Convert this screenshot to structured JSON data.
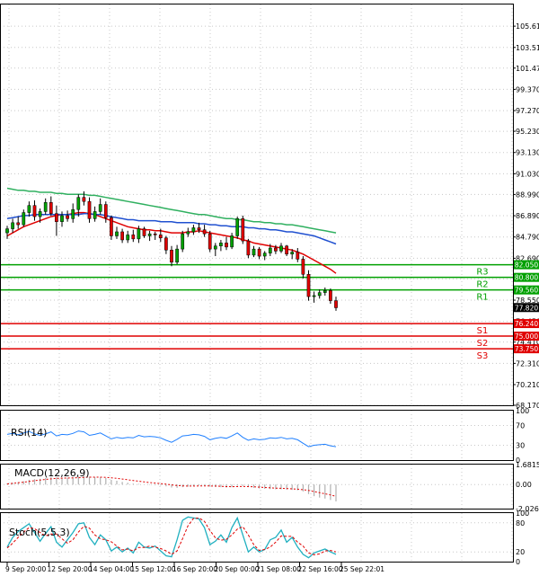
{
  "chart_data": {
    "type": "candlestick",
    "price_axis": {
      "ylim": [
        68.17,
        107.75
      ],
      "ticks": [
        "105.610",
        "103.510",
        "101.470",
        "99.370",
        "97.270",
        "95.230",
        "93.130",
        "91.030",
        "88.990",
        "86.890",
        "84.790",
        "82.690",
        "80.650",
        "78.550",
        "76.450",
        "74.410",
        "72.310",
        "70.210",
        "68.170"
      ]
    },
    "x_ticks": [
      "9 Sep 20:00",
      "12 Sep 20:00",
      "14 Sep 04:00",
      "15 Sep 12:00",
      "16 Sep 20:00",
      "20 Sep 00:00",
      "21 Sep 08:00",
      "22 Sep 16:00",
      "25 Sep 22:01"
    ],
    "current_price": {
      "label": "77.820",
      "value": 77.82
    },
    "levels": [
      {
        "name": "R3",
        "label": "82.050",
        "value": 82.05,
        "color": "#00a000"
      },
      {
        "name": "R2",
        "label": "80.800",
        "value": 80.8,
        "color": "#00a000"
      },
      {
        "name": "R1",
        "label": "79.560",
        "value": 79.56,
        "color": "#00a000"
      },
      {
        "name": "S1",
        "label": "76.240",
        "value": 76.24,
        "color": "#e00000"
      },
      {
        "name": "S2",
        "label": "75.000",
        "value": 75.0,
        "color": "#e00000"
      },
      {
        "name": "S3",
        "label": "73.750",
        "value": 73.75,
        "color": "#e00000"
      }
    ],
    "candles": [
      [
        85.2,
        85.9,
        84.6,
        85.6
      ],
      [
        85.6,
        86.6,
        85.2,
        86.2
      ],
      [
        86.2,
        86.8,
        85.6,
        86.0
      ],
      [
        86.0,
        87.5,
        85.8,
        87.2
      ],
      [
        87.2,
        88.3,
        86.8,
        87.9
      ],
      [
        87.9,
        88.4,
        86.4,
        86.8
      ],
      [
        86.8,
        87.6,
        86.2,
        87.3
      ],
      [
        87.3,
        88.6,
        87.0,
        88.2
      ],
      [
        88.2,
        88.8,
        86.9,
        87.1
      ],
      [
        87.1,
        87.9,
        84.9,
        86.3
      ],
      [
        86.3,
        87.3,
        85.8,
        86.9
      ],
      [
        86.9,
        87.4,
        86.3,
        86.6
      ],
      [
        86.6,
        88.1,
        86.2,
        87.5
      ],
      [
        87.5,
        89.0,
        86.8,
        88.7
      ],
      [
        88.7,
        89.3,
        87.9,
        88.3
      ],
      [
        88.3,
        88.7,
        86.2,
        86.6
      ],
      [
        86.6,
        87.8,
        86.3,
        87.3
      ],
      [
        87.3,
        88.6,
        87.0,
        88.0
      ],
      [
        88.0,
        88.3,
        86.2,
        86.7
      ],
      [
        86.7,
        86.9,
        84.5,
        84.9
      ],
      [
        84.9,
        85.8,
        84.6,
        85.3
      ],
      [
        85.3,
        85.6,
        84.2,
        84.5
      ],
      [
        84.5,
        85.4,
        84.2,
        85.0
      ],
      [
        85.0,
        85.5,
        84.3,
        84.6
      ],
      [
        84.6,
        85.9,
        84.2,
        85.6
      ],
      [
        85.6,
        85.8,
        84.7,
        84.9
      ],
      [
        84.9,
        85.4,
        84.4,
        85.1
      ],
      [
        85.1,
        85.3,
        84.5,
        85.0
      ],
      [
        85.0,
        85.6,
        84.3,
        84.7
      ],
      [
        84.7,
        84.9,
        83.1,
        83.5
      ],
      [
        83.5,
        83.9,
        81.9,
        82.3
      ],
      [
        82.3,
        84.0,
        82.1,
        83.6
      ],
      [
        83.6,
        85.4,
        83.3,
        85.1
      ],
      [
        85.1,
        85.7,
        84.8,
        85.3
      ],
      [
        85.3,
        86.0,
        85.0,
        85.7
      ],
      [
        85.7,
        86.2,
        85.2,
        85.5
      ],
      [
        85.5,
        86.0,
        84.8,
        85.1
      ],
      [
        85.1,
        85.4,
        83.3,
        83.6
      ],
      [
        83.6,
        84.2,
        82.9,
        83.9
      ],
      [
        83.9,
        84.5,
        83.4,
        84.2
      ],
      [
        84.2,
        84.8,
        83.5,
        83.8
      ],
      [
        83.8,
        85.2,
        83.6,
        84.9
      ],
      [
        84.9,
        86.8,
        84.6,
        86.6
      ],
      [
        86.6,
        86.9,
        84.1,
        84.4
      ],
      [
        84.4,
        84.6,
        82.7,
        83.0
      ],
      [
        83.0,
        83.9,
        82.8,
        83.6
      ],
      [
        83.6,
        83.8,
        82.6,
        82.9
      ],
      [
        82.9,
        83.4,
        82.5,
        83.2
      ],
      [
        83.2,
        84.1,
        82.9,
        83.7
      ],
      [
        83.7,
        84.0,
        83.1,
        83.4
      ],
      [
        83.4,
        84.2,
        83.2,
        83.9
      ],
      [
        83.9,
        84.0,
        82.9,
        83.1
      ],
      [
        83.1,
        83.6,
        82.6,
        83.3
      ],
      [
        83.3,
        83.7,
        82.3,
        82.6
      ],
      [
        82.6,
        82.9,
        80.7,
        81.1
      ],
      [
        81.1,
        81.5,
        78.5,
        78.9
      ],
      [
        78.9,
        79.4,
        78.3,
        79.0
      ],
      [
        79.0,
        79.6,
        78.7,
        79.3
      ],
      [
        79.3,
        79.8,
        79.0,
        79.5
      ],
      [
        79.5,
        79.7,
        78.2,
        78.5
      ],
      [
        78.5,
        78.9,
        77.5,
        77.8
      ]
    ],
    "moving_averages": [
      {
        "color": "#e00000",
        "values": [
          84.9,
          85.2,
          85.5,
          85.8,
          86.0,
          86.2,
          86.4,
          86.6,
          86.8,
          86.9,
          87.0,
          87.0,
          87.1,
          87.2,
          87.2,
          87.1,
          87.0,
          86.8,
          86.6,
          86.4,
          86.2,
          86.0,
          85.8,
          85.7,
          85.6,
          85.5,
          85.5,
          85.4,
          85.4,
          85.3,
          85.2,
          85.2,
          85.2,
          85.3,
          85.3,
          85.4,
          85.3,
          85.2,
          85.1,
          85.0,
          84.9,
          84.8,
          84.7,
          84.5,
          84.4,
          84.2,
          84.1,
          84.0,
          83.9,
          83.8,
          83.7,
          83.6,
          83.5,
          83.3,
          83.1,
          82.8,
          82.5,
          82.2,
          81.9,
          81.6,
          81.2
        ]
      },
      {
        "color": "#2050d0",
        "values": [
          86.6,
          86.7,
          86.8,
          86.9,
          86.9,
          87.0,
          87.0,
          87.0,
          87.0,
          87.0,
          87.0,
          87.0,
          87.0,
          87.0,
          87.1,
          87.1,
          87.0,
          87.0,
          86.9,
          86.8,
          86.7,
          86.6,
          86.5,
          86.5,
          86.4,
          86.4,
          86.4,
          86.4,
          86.3,
          86.3,
          86.3,
          86.2,
          86.2,
          86.2,
          86.2,
          86.1,
          86.1,
          86.0,
          86.0,
          85.9,
          85.9,
          85.8,
          85.8,
          85.8,
          85.7,
          85.7,
          85.6,
          85.6,
          85.5,
          85.5,
          85.4,
          85.3,
          85.3,
          85.2,
          85.1,
          85.0,
          84.9,
          84.7,
          84.5,
          84.3,
          84.1
        ]
      },
      {
        "color": "#30b060",
        "values": [
          89.6,
          89.5,
          89.4,
          89.4,
          89.3,
          89.3,
          89.2,
          89.2,
          89.2,
          89.1,
          89.1,
          89.0,
          89.0,
          89.0,
          89.0,
          88.9,
          88.9,
          88.8,
          88.7,
          88.6,
          88.5,
          88.4,
          88.3,
          88.2,
          88.1,
          88.0,
          87.9,
          87.8,
          87.7,
          87.6,
          87.5,
          87.4,
          87.3,
          87.2,
          87.1,
          87.0,
          87.0,
          86.9,
          86.8,
          86.7,
          86.6,
          86.6,
          86.5,
          86.5,
          86.4,
          86.3,
          86.3,
          86.2,
          86.2,
          86.1,
          86.1,
          86.0,
          86.0,
          85.9,
          85.8,
          85.7,
          85.6,
          85.5,
          85.4,
          85.3,
          85.2
        ]
      }
    ],
    "rsi": {
      "title": "RSI(14)",
      "ylim": [
        0,
        100
      ],
      "ticks": [
        "100",
        "70",
        "30",
        "0"
      ],
      "values": [
        52,
        54,
        51,
        55,
        58,
        53,
        50,
        53,
        57,
        49,
        52,
        51,
        54,
        59,
        57,
        50,
        52,
        55,
        49,
        43,
        46,
        44,
        46,
        45,
        50,
        47,
        48,
        47,
        45,
        40,
        36,
        42,
        49,
        50,
        52,
        51,
        48,
        41,
        44,
        46,
        44,
        49,
        55,
        46,
        40,
        43,
        41,
        42,
        45,
        44,
        46,
        43,
        44,
        41,
        34,
        27,
        30,
        31,
        32,
        29,
        27
      ]
    },
    "macd": {
      "title": "MACD(12,26,9)",
      "ticks": [
        "1.6815",
        "0.00",
        "-2.0269"
      ],
      "ylim": [
        -2.0269,
        1.6815
      ],
      "histogram": [
        0.1,
        0.15,
        0.2,
        0.28,
        0.4,
        0.45,
        0.48,
        0.55,
        0.62,
        0.6,
        0.58,
        0.57,
        0.6,
        0.68,
        0.72,
        0.66,
        0.62,
        0.63,
        0.55,
        0.4,
        0.32,
        0.22,
        0.15,
        0.08,
        0.05,
        0.0,
        -0.03,
        -0.05,
        -0.08,
        -0.15,
        -0.25,
        -0.28,
        -0.22,
        -0.18,
        -0.12,
        -0.08,
        -0.08,
        -0.15,
        -0.2,
        -0.22,
        -0.25,
        -0.22,
        -0.1,
        -0.12,
        -0.22,
        -0.28,
        -0.33,
        -0.36,
        -0.38,
        -0.4,
        -0.4,
        -0.42,
        -0.45,
        -0.48,
        -0.58,
        -0.8,
        -0.98,
        -1.1,
        -1.18,
        -1.3,
        -1.42
      ],
      "signal": [
        0.05,
        0.1,
        0.15,
        0.2,
        0.27,
        0.33,
        0.38,
        0.43,
        0.48,
        0.52,
        0.54,
        0.55,
        0.56,
        0.58,
        0.61,
        0.62,
        0.62,
        0.62,
        0.61,
        0.57,
        0.52,
        0.46,
        0.4,
        0.34,
        0.28,
        0.22,
        0.17,
        0.12,
        0.08,
        0.03,
        -0.03,
        -0.08,
        -0.11,
        -0.13,
        -0.13,
        -0.12,
        -0.11,
        -0.12,
        -0.13,
        -0.15,
        -0.17,
        -0.18,
        -0.17,
        -0.16,
        -0.17,
        -0.19,
        -0.22,
        -0.25,
        -0.28,
        -0.3,
        -0.32,
        -0.34,
        -0.36,
        -0.39,
        -0.43,
        -0.5,
        -0.59,
        -0.69,
        -0.78,
        -0.88,
        -0.99
      ]
    },
    "stoch": {
      "title": "Stoch(5,5,3)",
      "ylim": [
        0,
        100
      ],
      "ticks": [
        "100",
        "80",
        "20",
        "0"
      ],
      "main": [
        30,
        50,
        62,
        70,
        78,
        60,
        42,
        58,
        72,
        40,
        30,
        45,
        60,
        78,
        80,
        50,
        35,
        55,
        45,
        22,
        30,
        20,
        28,
        18,
        40,
        30,
        28,
        32,
        22,
        12,
        10,
        45,
        85,
        92,
        90,
        88,
        70,
        35,
        42,
        55,
        40,
        70,
        90,
        55,
        20,
        30,
        20,
        25,
        45,
        50,
        65,
        40,
        50,
        30,
        15,
        8,
        18,
        22,
        26,
        20,
        15
      ],
      "signal": [
        28,
        38,
        50,
        61,
        70,
        68,
        60,
        53,
        57,
        57,
        47,
        38,
        45,
        61,
        73,
        69,
        55,
        47,
        45,
        41,
        32,
        24,
        26,
        22,
        29,
        29,
        32,
        30,
        27,
        22,
        15,
        22,
        47,
        74,
        89,
        90,
        83,
        64,
        49,
        44,
        46,
        55,
        67,
        72,
        55,
        35,
        23,
        25,
        30,
        40,
        53,
        52,
        52,
        40,
        32,
        18,
        14,
        16,
        22,
        23,
        20
      ]
    }
  }
}
